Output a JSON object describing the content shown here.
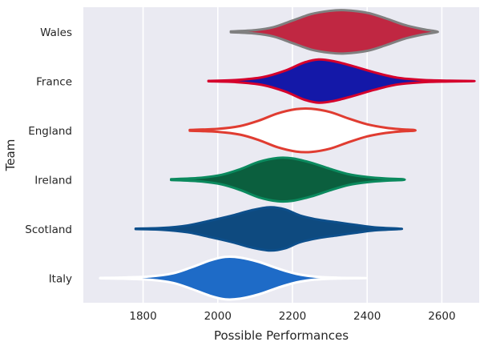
{
  "chart_data": {
    "type": "violin",
    "orientation": "horizontal",
    "xlabel": "Possible Performances",
    "ylabel": "Team",
    "xlim": [
      1640,
      2700
    ],
    "xticks": [
      1800,
      2000,
      2200,
      2400,
      2600
    ],
    "grid": true,
    "background": "#eaeaf2",
    "categories": [
      "Wales",
      "France",
      "England",
      "Ireland",
      "Scotland",
      "Italy"
    ],
    "series": [
      {
        "name": "Wales",
        "fill": "#c02742",
        "stroke": "#808080",
        "min": 2035,
        "max": 2585,
        "profile": [
          [
            2035,
            0.02
          ],
          [
            2100,
            0.08
          ],
          [
            2150,
            0.22
          ],
          [
            2200,
            0.52
          ],
          [
            2250,
            0.82
          ],
          [
            2300,
            0.97
          ],
          [
            2340,
            1.0
          ],
          [
            2400,
            0.88
          ],
          [
            2450,
            0.62
          ],
          [
            2500,
            0.32
          ],
          [
            2550,
            0.12
          ],
          [
            2585,
            0.02
          ]
        ]
      },
      {
        "name": "France",
        "fill": "#1418a8",
        "stroke": "#d5002c",
        "min": 1975,
        "max": 2680,
        "profile": [
          [
            1975,
            0.01
          ],
          [
            2050,
            0.05
          ],
          [
            2120,
            0.18
          ],
          [
            2180,
            0.48
          ],
          [
            2230,
            0.85
          ],
          [
            2270,
            1.0
          ],
          [
            2310,
            0.92
          ],
          [
            2360,
            0.7
          ],
          [
            2420,
            0.4
          ],
          [
            2480,
            0.16
          ],
          [
            2550,
            0.05
          ],
          [
            2620,
            0.02
          ],
          [
            2680,
            0.005
          ]
        ]
      },
      {
        "name": "England",
        "fill": "#ffffff",
        "stroke": "#e03c31",
        "min": 1925,
        "max": 2525,
        "profile": [
          [
            1925,
            0.02
          ],
          [
            2000,
            0.07
          ],
          [
            2060,
            0.2
          ],
          [
            2110,
            0.45
          ],
          [
            2160,
            0.78
          ],
          [
            2210,
            0.98
          ],
          [
            2250,
            1.0
          ],
          [
            2300,
            0.85
          ],
          [
            2350,
            0.55
          ],
          [
            2400,
            0.28
          ],
          [
            2450,
            0.12
          ],
          [
            2490,
            0.05
          ],
          [
            2525,
            0.02
          ]
        ]
      },
      {
        "name": "Ireland",
        "fill": "#0b5f3e",
        "stroke": "#0b8a5e",
        "min": 1875,
        "max": 2495,
        "profile": [
          [
            1875,
            0.02
          ],
          [
            1950,
            0.08
          ],
          [
            2010,
            0.22
          ],
          [
            2060,
            0.48
          ],
          [
            2110,
            0.82
          ],
          [
            2160,
            1.0
          ],
          [
            2200,
            0.98
          ],
          [
            2250,
            0.78
          ],
          [
            2300,
            0.5
          ],
          [
            2350,
            0.25
          ],
          [
            2400,
            0.12
          ],
          [
            2450,
            0.05
          ],
          [
            2495,
            0.02
          ]
        ]
      },
      {
        "name": "Scotland",
        "fill": "#0e4a7f",
        "stroke": "#0d4f8b",
        "min": 1780,
        "max": 2485,
        "profile": [
          [
            1780,
            0.01
          ],
          [
            1850,
            0.04
          ],
          [
            1920,
            0.16
          ],
          [
            1980,
            0.38
          ],
          [
            2040,
            0.62
          ],
          [
            2090,
            0.86
          ],
          [
            2140,
            1.0
          ],
          [
            2180,
            0.9
          ],
          [
            2220,
            0.62
          ],
          [
            2270,
            0.42
          ],
          [
            2320,
            0.3
          ],
          [
            2370,
            0.18
          ],
          [
            2420,
            0.07
          ],
          [
            2485,
            0.01
          ]
        ]
      },
      {
        "name": "Italy",
        "fill": "#1e6bc7",
        "stroke": "#ffffff",
        "min": 1685,
        "max": 2390,
        "profile": [
          [
            1685,
            0.01
          ],
          [
            1750,
            0.03
          ],
          [
            1820,
            0.08
          ],
          [
            1880,
            0.22
          ],
          [
            1930,
            0.5
          ],
          [
            1980,
            0.82
          ],
          [
            2020,
            0.98
          ],
          [
            2060,
            0.95
          ],
          [
            2110,
            0.75
          ],
          [
            2160,
            0.45
          ],
          [
            2210,
            0.2
          ],
          [
            2260,
            0.07
          ],
          [
            2320,
            0.02
          ],
          [
            2390,
            0.005
          ]
        ]
      }
    ]
  }
}
